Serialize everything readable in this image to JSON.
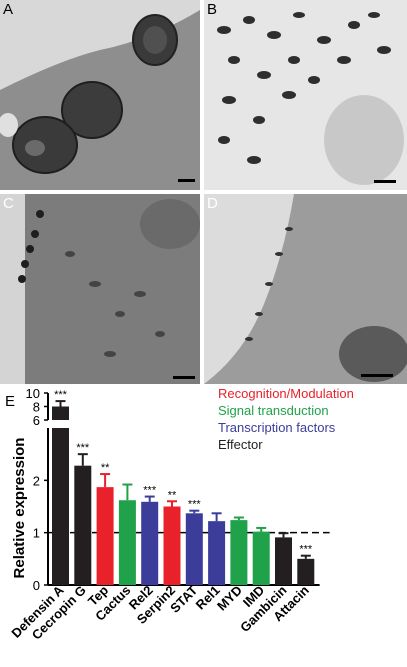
{
  "panels": [
    {
      "label": "A",
      "tone": "#8c8c8c"
    },
    {
      "label": "B",
      "tone": "#d9d9d9"
    },
    {
      "label": "C",
      "tone": "#7a7a7a"
    },
    {
      "label": "D",
      "tone": "#a8a8a8"
    }
  ],
  "chart_label": "E",
  "chart_data": {
    "type": "bar",
    "ylabel": "Relative expression",
    "categories": [
      "Defensin A",
      "Cecropin G",
      "Tep",
      "Cactus",
      "Rel2",
      "Serpin2",
      "STAT",
      "Rel1",
      "MYD",
      "IMD",
      "Gambicin",
      "Attacin"
    ],
    "values": [
      8.0,
      2.28,
      1.87,
      1.62,
      1.59,
      1.5,
      1.37,
      1.22,
      1.24,
      1.02,
      0.91,
      0.5
    ],
    "errors": [
      0.8,
      0.22,
      0.25,
      0.3,
      0.1,
      0.1,
      0.05,
      0.15,
      0.05,
      0.07,
      0.08,
      0.06
    ],
    "significance": [
      "***",
      "***",
      "**",
      "",
      "***",
      "**",
      "***",
      "",
      "",
      "",
      "",
      "***"
    ],
    "groups": [
      "Effector",
      "Effector",
      "Recognition/Modulation",
      "Signal transduction",
      "Transcription factors",
      "Recognition/Modulation",
      "Transcription factors",
      "Transcription factors",
      "Signal transduction",
      "Signal transduction",
      "Effector",
      "Effector"
    ],
    "ylim_lower": [
      0,
      3
    ],
    "ylim_upper": [
      6,
      10
    ],
    "yticks_lower": [
      "0",
      "1",
      "2"
    ],
    "yticks_upper": [
      "6",
      "8",
      "10"
    ],
    "reference_line": 1,
    "legend": [
      {
        "name": "Recognition/Modulation",
        "color": "#e8212b"
      },
      {
        "name": "Signal transduction",
        "color": "#1fa24a"
      },
      {
        "name": "Transcription factors",
        "color": "#3c3d9a"
      },
      {
        "name": "Effector",
        "color": "#231f20"
      }
    ]
  }
}
